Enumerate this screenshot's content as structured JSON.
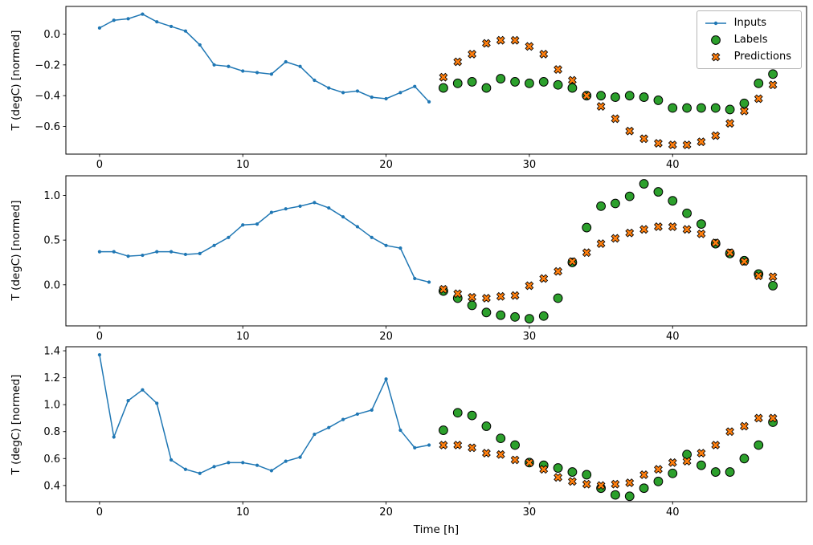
{
  "figure": {
    "background": "#ffffff",
    "xlabel": "Time [h]",
    "legend": {
      "position": "top-right",
      "entries": [
        {
          "label": "Inputs",
          "marker": "line-dot",
          "color": "#1f77b4"
        },
        {
          "label": "Labels",
          "marker": "circle",
          "color": "#2ca02c",
          "edge_color": "#000000"
        },
        {
          "label": "Predictions",
          "marker": "X",
          "color": "#ff7f0e",
          "edge_color": "#000000"
        }
      ]
    }
  },
  "chart_data": [
    {
      "type": "line",
      "subplot": 1,
      "title": "",
      "xlabel": "",
      "ylabel": "T (degC) [normed]",
      "xlim": [
        -2.35,
        49.35
      ],
      "ylim": [
        -0.78,
        0.18
      ],
      "grid": false,
      "x_ticks": [
        0,
        10,
        20,
        30,
        40
      ],
      "x_tick_labels": [
        "0",
        "10",
        "20",
        "30",
        "40"
      ],
      "y_ticks": [
        0.0,
        -0.2,
        -0.4,
        -0.6
      ],
      "y_tick_labels": [
        "0.0",
        "−0.2",
        "−0.4",
        "−0.6"
      ],
      "series": [
        {
          "name": "Inputs",
          "type": "line",
          "marker": "dot",
          "color": "#1f77b4",
          "x": [
            0,
            1,
            2,
            3,
            4,
            5,
            6,
            7,
            8,
            9,
            10,
            11,
            12,
            13,
            14,
            15,
            16,
            17,
            18,
            19,
            20,
            21,
            22,
            23
          ],
          "y": [
            0.04,
            0.09,
            0.1,
            0.13,
            0.08,
            0.05,
            0.02,
            -0.07,
            -0.2,
            -0.21,
            -0.24,
            -0.25,
            -0.26,
            -0.18,
            -0.21,
            -0.3,
            -0.35,
            -0.38,
            -0.37,
            -0.41,
            -0.42,
            -0.38,
            -0.34,
            -0.44
          ]
        },
        {
          "name": "Labels",
          "type": "scatter",
          "marker": "circle",
          "color": "#2ca02c",
          "edge_color": "#000000",
          "x": [
            24,
            25,
            26,
            27,
            28,
            29,
            30,
            31,
            32,
            33,
            34,
            35,
            36,
            37,
            38,
            39,
            40,
            41,
            42,
            43,
            44,
            45,
            46,
            47
          ],
          "y": [
            -0.35,
            -0.32,
            -0.31,
            -0.35,
            -0.29,
            -0.31,
            -0.32,
            -0.31,
            -0.33,
            -0.35,
            -0.4,
            -0.4,
            -0.41,
            -0.4,
            -0.41,
            -0.43,
            -0.48,
            -0.48,
            -0.48,
            -0.48,
            -0.49,
            -0.45,
            -0.32,
            -0.26
          ]
        },
        {
          "name": "Predictions",
          "type": "scatter",
          "marker": "X",
          "color": "#ff7f0e",
          "edge_color": "#000000",
          "x": [
            24,
            25,
            26,
            27,
            28,
            29,
            30,
            31,
            32,
            33,
            34,
            35,
            36,
            37,
            38,
            39,
            40,
            41,
            42,
            43,
            44,
            45,
            46,
            47
          ],
          "y": [
            -0.28,
            -0.18,
            -0.13,
            -0.06,
            -0.04,
            -0.04,
            -0.08,
            -0.13,
            -0.23,
            -0.3,
            -0.4,
            -0.47,
            -0.55,
            -0.63,
            -0.68,
            -0.71,
            -0.72,
            -0.72,
            -0.7,
            -0.66,
            -0.58,
            -0.5,
            -0.42,
            -0.33
          ]
        }
      ]
    },
    {
      "type": "line",
      "subplot": 2,
      "title": "",
      "xlabel": "",
      "ylabel": "T (degC) [normed]",
      "xlim": [
        -2.35,
        49.35
      ],
      "ylim": [
        -0.46,
        1.22
      ],
      "grid": false,
      "x_ticks": [
        0,
        10,
        20,
        30,
        40
      ],
      "x_tick_labels": [
        "0",
        "10",
        "20",
        "30",
        "40"
      ],
      "y_ticks": [
        1.0,
        0.5,
        0.0
      ],
      "y_tick_labels": [
        "1.0",
        "0.5",
        "0.0"
      ],
      "series": [
        {
          "name": "Inputs",
          "type": "line",
          "marker": "dot",
          "color": "#1f77b4",
          "x": [
            0,
            1,
            2,
            3,
            4,
            5,
            6,
            7,
            8,
            9,
            10,
            11,
            12,
            13,
            14,
            15,
            16,
            17,
            18,
            19,
            20,
            21,
            22,
            23
          ],
          "y": [
            0.37,
            0.37,
            0.32,
            0.33,
            0.37,
            0.37,
            0.34,
            0.35,
            0.44,
            0.53,
            0.67,
            0.68,
            0.81,
            0.85,
            0.88,
            0.92,
            0.86,
            0.76,
            0.65,
            0.53,
            0.44,
            0.41,
            0.07,
            0.03
          ]
        },
        {
          "name": "Labels",
          "type": "scatter",
          "marker": "circle",
          "color": "#2ca02c",
          "edge_color": "#000000",
          "x": [
            24,
            25,
            26,
            27,
            28,
            29,
            30,
            31,
            32,
            33,
            34,
            35,
            36,
            37,
            38,
            39,
            40,
            41,
            42,
            43,
            44,
            45,
            46,
            47
          ],
          "y": [
            -0.07,
            -0.15,
            -0.23,
            -0.31,
            -0.34,
            -0.36,
            -0.38,
            -0.35,
            -0.15,
            0.25,
            0.64,
            0.88,
            0.91,
            0.99,
            1.13,
            1.04,
            0.94,
            0.8,
            0.68,
            0.46,
            0.35,
            0.27,
            0.12,
            -0.01
          ]
        },
        {
          "name": "Predictions",
          "type": "scatter",
          "marker": "X",
          "color": "#ff7f0e",
          "edge_color": "#000000",
          "x": [
            24,
            25,
            26,
            27,
            28,
            29,
            30,
            31,
            32,
            33,
            34,
            35,
            36,
            37,
            38,
            39,
            40,
            41,
            42,
            43,
            44,
            45,
            46,
            47
          ],
          "y": [
            -0.05,
            -0.1,
            -0.14,
            -0.15,
            -0.13,
            -0.12,
            -0.01,
            0.07,
            0.15,
            0.26,
            0.36,
            0.46,
            0.52,
            0.58,
            0.62,
            0.65,
            0.65,
            0.62,
            0.57,
            0.47,
            0.36,
            0.26,
            0.1,
            0.09
          ]
        }
      ]
    },
    {
      "type": "line",
      "subplot": 3,
      "title": "",
      "xlabel": "Time [h]",
      "ylabel": "T (degC) [normed]",
      "xlim": [
        -2.35,
        49.35
      ],
      "ylim": [
        0.28,
        1.43
      ],
      "grid": false,
      "x_ticks": [
        0,
        10,
        20,
        30,
        40
      ],
      "x_tick_labels": [
        "0",
        "10",
        "20",
        "30",
        "40"
      ],
      "y_ticks": [
        1.4,
        1.2,
        1.0,
        0.8,
        0.6,
        0.4
      ],
      "y_tick_labels": [
        "1.4",
        "1.2",
        "1.0",
        "0.8",
        "0.6",
        "0.4"
      ],
      "series": [
        {
          "name": "Inputs",
          "type": "line",
          "marker": "dot",
          "color": "#1f77b4",
          "x": [
            0,
            1,
            2,
            3,
            4,
            5,
            6,
            7,
            8,
            9,
            10,
            11,
            12,
            13,
            14,
            15,
            16,
            17,
            18,
            19,
            20,
            21,
            22,
            23
          ],
          "y": [
            1.37,
            0.76,
            1.03,
            1.11,
            1.01,
            0.59,
            0.52,
            0.49,
            0.54,
            0.57,
            0.57,
            0.55,
            0.51,
            0.58,
            0.61,
            0.78,
            0.83,
            0.89,
            0.93,
            0.96,
            1.19,
            0.81,
            0.68,
            0.7
          ]
        },
        {
          "name": "Labels",
          "type": "scatter",
          "marker": "circle",
          "color": "#2ca02c",
          "edge_color": "#000000",
          "x": [
            24,
            25,
            26,
            27,
            28,
            29,
            30,
            31,
            32,
            33,
            34,
            35,
            36,
            37,
            38,
            39,
            40,
            41,
            42,
            43,
            44,
            45,
            46,
            47
          ],
          "y": [
            0.81,
            0.94,
            0.92,
            0.84,
            0.75,
            0.7,
            0.57,
            0.55,
            0.53,
            0.5,
            0.48,
            0.38,
            0.33,
            0.32,
            0.38,
            0.43,
            0.49,
            0.63,
            0.55,
            0.5,
            0.5,
            0.6,
            0.7,
            0.87
          ]
        },
        {
          "name": "Predictions",
          "type": "scatter",
          "marker": "X",
          "color": "#ff7f0e",
          "edge_color": "#000000",
          "x": [
            24,
            25,
            26,
            27,
            28,
            29,
            30,
            31,
            32,
            33,
            34,
            35,
            36,
            37,
            38,
            39,
            40,
            41,
            42,
            43,
            44,
            45,
            46,
            47
          ],
          "y": [
            0.7,
            0.7,
            0.68,
            0.64,
            0.63,
            0.59,
            0.57,
            0.52,
            0.46,
            0.43,
            0.41,
            0.4,
            0.41,
            0.42,
            0.48,
            0.52,
            0.57,
            0.58,
            0.64,
            0.7,
            0.8,
            0.84,
            0.9,
            0.9
          ]
        }
      ]
    }
  ]
}
